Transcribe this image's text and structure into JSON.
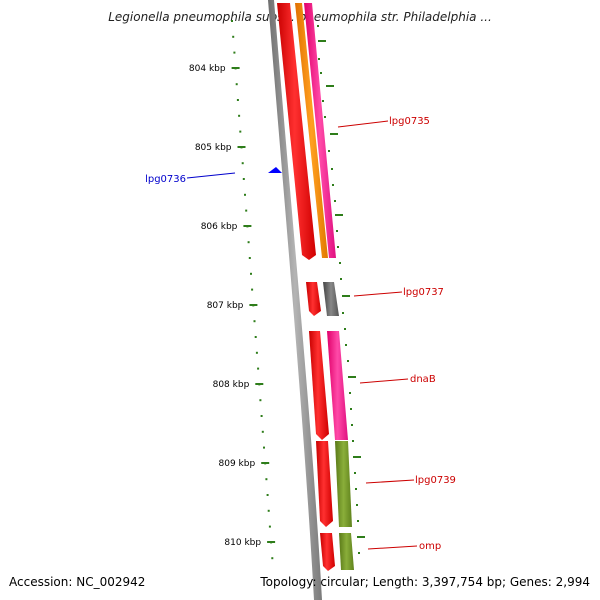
{
  "title": "Legionella pneumophila subsp. pneumophila str. Philadelphia ...",
  "footer": {
    "accession": "Accession: NC_002942",
    "summary": "Topology: circular; Length: 3,397,754 bp; Genes: 2,994"
  },
  "ruler": {
    "ticks": [
      {
        "label": "804 kbp",
        "kbp": 804
      },
      {
        "label": "805 kbp",
        "kbp": 805
      },
      {
        "label": "806 kbp",
        "kbp": 806
      },
      {
        "label": "807 kbp",
        "kbp": 807
      },
      {
        "label": "808 kbp",
        "kbp": 808
      },
      {
        "label": "809 kbp",
        "kbp": 809
      },
      {
        "label": "810 kbp",
        "kbp": 810
      }
    ],
    "color": "#2e7d1a"
  },
  "gene_labels": [
    {
      "name": "lpg0735",
      "color": "#cc0000"
    },
    {
      "name": "lpg0736",
      "color": "#0000cc"
    },
    {
      "name": "lpg0737",
      "color": "#cc0000"
    },
    {
      "name": "dnaB",
      "color": "#cc0000"
    },
    {
      "name": "lpg0739",
      "color": "#cc0000"
    },
    {
      "name": "omp",
      "color": "#cc0000"
    }
  ],
  "colors": {
    "cds": "#ff0000",
    "orange": "#ff8c00",
    "magenta": "#ff1493",
    "olive": "#6b8e23",
    "grey": "#666666",
    "backbone": "#8a8a8a",
    "blue_marker": "#0000ff"
  }
}
